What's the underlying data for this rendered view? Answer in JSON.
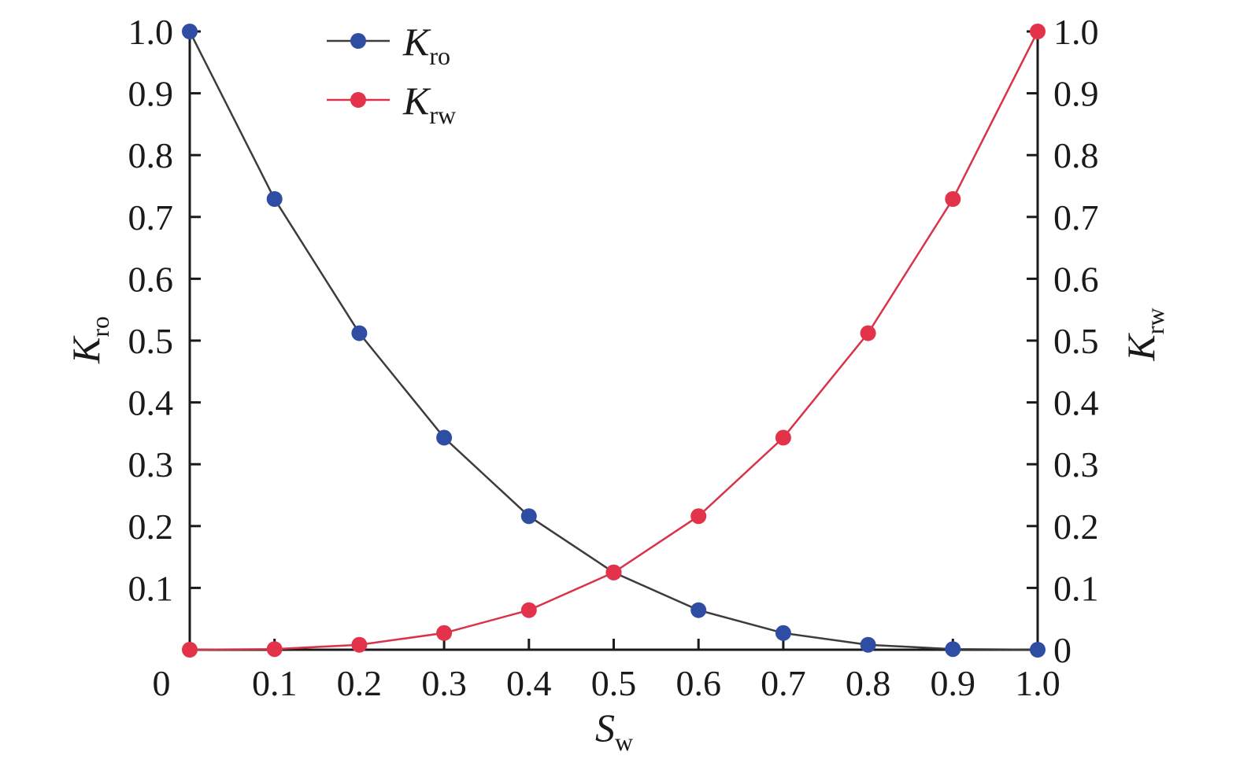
{
  "chart_data": {
    "type": "line",
    "title": "",
    "xlabel": {
      "main": "S",
      "sub": "w"
    },
    "ylabel_left": {
      "main": "K",
      "sub": "ro"
    },
    "ylabel_right": {
      "main": "K",
      "sub": "rw"
    },
    "xlim": [
      0,
      1.0
    ],
    "ylim": [
      0,
      1.0
    ],
    "x": [
      0,
      0.1,
      0.2,
      0.3,
      0.4,
      0.5,
      0.6,
      0.7,
      0.8,
      0.9,
      1.0
    ],
    "x_tick_labels": [
      "0",
      "0.1",
      "0.2",
      "0.3",
      "0.4",
      "0.5",
      "0.6",
      "0.7",
      "0.8",
      "0.9",
      "1.0"
    ],
    "y_left_tick_labels": [
      "0.1",
      "0.2",
      "0.3",
      "0.4",
      "0.5",
      "0.6",
      "0.7",
      "0.8",
      "0.9",
      "1.0"
    ],
    "y_right_tick_labels": [
      "0",
      "0.1",
      "0.2",
      "0.3",
      "0.4",
      "0.5",
      "0.6",
      "0.7",
      "0.8",
      "0.9",
      "1.0"
    ],
    "grid": false,
    "legend_position": "top-left",
    "series": [
      {
        "name": "Kro",
        "label_main": "K",
        "label_sub": "ro",
        "axis": "left",
        "line_color": "#3c3c3c",
        "marker_color": "#2f4ea3",
        "values": [
          1.0,
          0.729,
          0.512,
          0.343,
          0.216,
          0.125,
          0.064,
          0.027,
          0.008,
          0.001,
          0.0
        ]
      },
      {
        "name": "Krw",
        "label_main": "K",
        "label_sub": "rw",
        "axis": "right",
        "line_color": "#d9334a",
        "marker_color": "#e3334a",
        "values": [
          0.0,
          0.001,
          0.008,
          0.027,
          0.064,
          0.125,
          0.216,
          0.343,
          0.512,
          0.729,
          1.0
        ]
      }
    ]
  }
}
